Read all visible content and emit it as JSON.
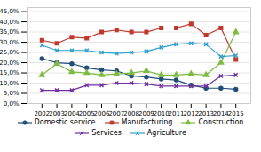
{
  "chart_data": {
    "type": "line",
    "x": [
      2002,
      2003,
      2004,
      2005,
      2006,
      2007,
      2008,
      2009,
      2010,
      2011,
      2012,
      2013,
      2014,
      2015
    ],
    "series": [
      {
        "name": "Domestic service",
        "color": "#1f4e79",
        "marker": "circle",
        "values": [
          22.0,
          20.0,
          19.5,
          17.5,
          16.5,
          16.0,
          13.5,
          13.0,
          12.0,
          11.5,
          9.0,
          7.5,
          7.5,
          7.0
        ]
      },
      {
        "name": "Manufacturing",
        "color": "#c0392b",
        "marker": "square",
        "values": [
          31.0,
          29.5,
          32.5,
          32.0,
          35.0,
          36.0,
          35.0,
          35.0,
          37.0,
          37.0,
          39.0,
          33.5,
          37.0,
          21.5
        ]
      },
      {
        "name": "Construction",
        "color": "#7dbb42",
        "marker": "triangle",
        "values": [
          14.0,
          19.5,
          15.5,
          15.0,
          14.0,
          14.5,
          15.0,
          16.0,
          14.0,
          14.0,
          14.5,
          14.0,
          20.0,
          35.0
        ]
      },
      {
        "name": "Services",
        "color": "#7030a0",
        "marker": "x",
        "values": [
          6.5,
          6.5,
          6.5,
          9.0,
          9.0,
          10.0,
          10.0,
          9.5,
          8.5,
          8.5,
          8.5,
          8.5,
          13.5,
          14.0
        ]
      },
      {
        "name": "Agriculture",
        "color": "#2e9fce",
        "marker": "x",
        "values": [
          28.5,
          26.0,
          26.0,
          26.0,
          25.0,
          24.5,
          25.0,
          25.5,
          27.5,
          29.0,
          29.5,
          29.0,
          23.0,
          23.5
        ]
      }
    ],
    "xlim": [
      2001,
      2016
    ],
    "xticks": [
      2002,
      2003,
      2004,
      2005,
      2006,
      2007,
      2008,
      2009,
      2010,
      2011,
      2012,
      2013,
      2014,
      2015
    ],
    "ylim": [
      0.0,
      47.0
    ],
    "yticks": [
      {
        "value": 0.0,
        "label": "0,0%"
      },
      {
        "value": 5.0,
        "label": "5,0%"
      },
      {
        "value": 10.0,
        "label": "10,0%"
      },
      {
        "value": 15.0,
        "label": "15,0%"
      },
      {
        "value": 20.0,
        "label": "20,0%"
      },
      {
        "value": 25.0,
        "label": "25,0%"
      },
      {
        "value": 30.0,
        "label": "30,0%"
      },
      {
        "value": 35.0,
        "label": "35,0%"
      },
      {
        "value": 40.0,
        "label": "40,0%"
      },
      {
        "value": 45.0,
        "label": "45,0%"
      }
    ],
    "grid": true,
    "legend": "bottom"
  }
}
